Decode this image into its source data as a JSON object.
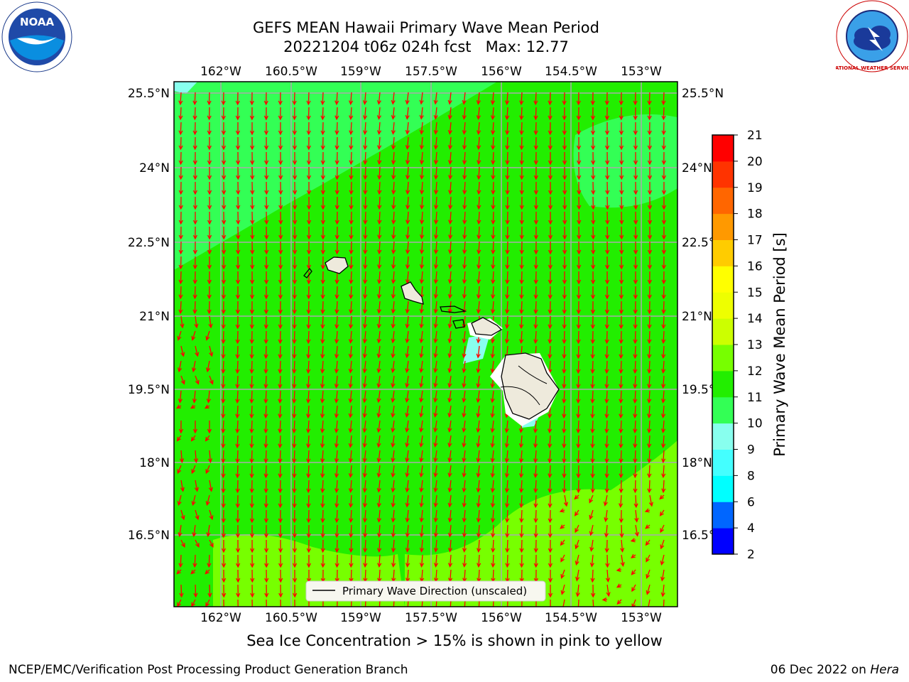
{
  "title": {
    "line1": "GEFS MEAN Hawaii Primary Wave Mean Period",
    "line2": "20221204 t06z 024h fcst   Max: 12.77"
  },
  "map": {
    "lon_ticks": [
      "162°W",
      "160.5°W",
      "159°W",
      "157.5°W",
      "156°W",
      "154.5°W",
      "153°W"
    ],
    "lat_ticks": [
      "25.5°N",
      "24°N",
      "22.5°N",
      "21°N",
      "19.5°N",
      "18°N",
      "16.5°N"
    ],
    "legend_label": "Primary Wave Direction (unscaled)",
    "arrow_color": "#ff0000",
    "ocean_color": "#22ee00",
    "land_color": "#eeeadc"
  },
  "colorbar": {
    "label": "Primary Wave Mean Period [s]",
    "ticks": [
      "2",
      "4",
      "6",
      "8",
      "9",
      "10",
      "11",
      "12",
      "13",
      "14",
      "15",
      "16",
      "17",
      "18",
      "19",
      "20",
      "21"
    ],
    "colors": [
      "#0000ff",
      "#0066ff",
      "#00ffff",
      "#44ffff",
      "#88ffee",
      "#33ff55",
      "#22ee00",
      "#77ff00",
      "#ccff00",
      "#eeff00",
      "#ffff00",
      "#ffcc00",
      "#ff9900",
      "#ff6600",
      "#ff3300",
      "#ff0000"
    ]
  },
  "note": "Sea Ice Concentration > 15% is shown in pink to yellow",
  "footer": {
    "left": "NCEP/EMC/Verification Post Processing Product Generation Branch",
    "date": "06 Dec 2022 on",
    "host": "Hera"
  },
  "logos": {
    "noaa_text": "NOAA",
    "nws_text": "NATIONAL WEATHER SERVICE"
  }
}
